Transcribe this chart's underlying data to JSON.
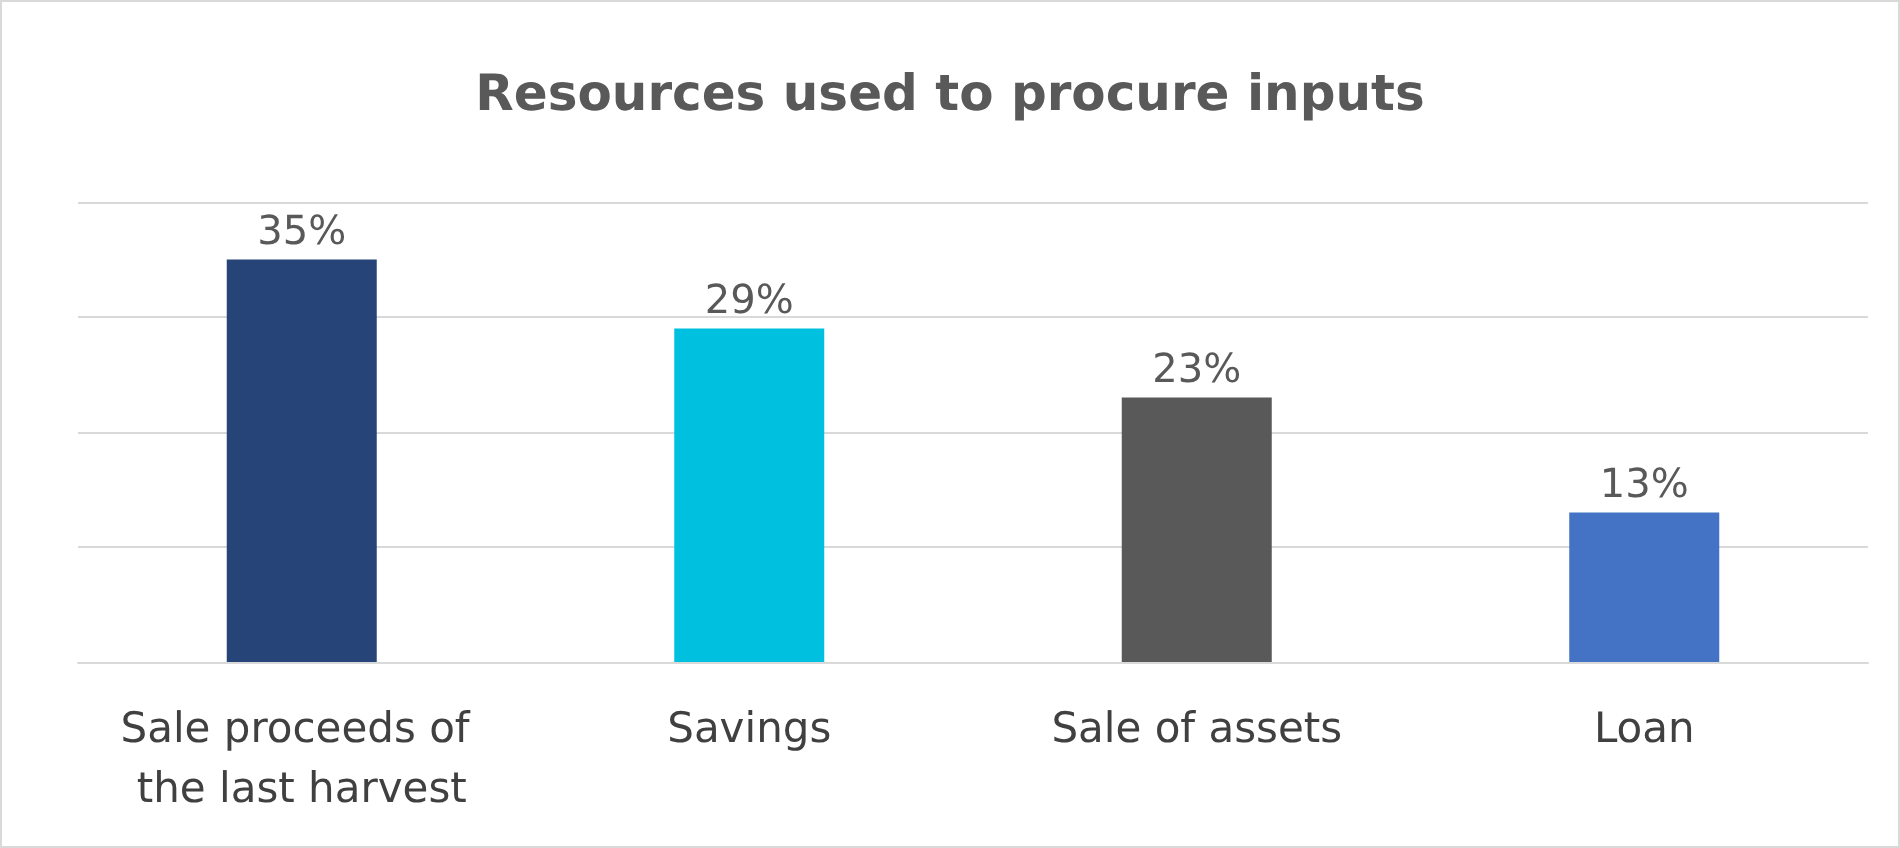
{
  "chart_data": {
    "type": "bar",
    "title": "Resources used to procure inputs",
    "categories": [
      "Sale proceeds of the last harvest",
      "Savings",
      "Sale of assets",
      "Loan"
    ],
    "values": [
      35,
      29,
      23,
      13
    ],
    "colors": [
      "#264478",
      "#00c0e0",
      "#595959",
      "#4472c4"
    ],
    "value_labels": [
      "35%",
      "29%",
      "23%",
      "13%"
    ],
    "ylim": [
      0,
      40
    ],
    "yticks": [
      0,
      10,
      20,
      30,
      40
    ],
    "tick_labels": "x",
    "grid": "y"
  }
}
